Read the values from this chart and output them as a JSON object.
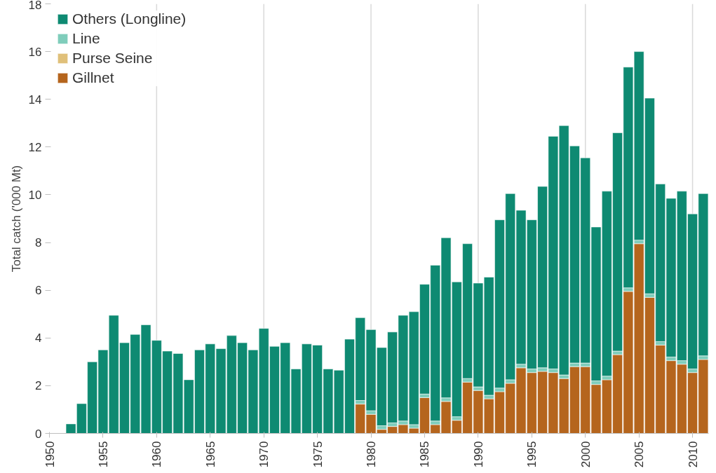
{
  "chart_data": {
    "type": "bar",
    "stacked": true,
    "ylabel": "Total catch ('000 Mt)",
    "x": [
      1952,
      1953,
      1954,
      1955,
      1956,
      1957,
      1958,
      1959,
      1960,
      1961,
      1962,
      1963,
      1964,
      1965,
      1966,
      1967,
      1968,
      1969,
      1970,
      1971,
      1972,
      1973,
      1974,
      1975,
      1976,
      1977,
      1978,
      1979,
      1980,
      1981,
      1982,
      1983,
      1984,
      1985,
      1986,
      1987,
      1988,
      1989,
      1990,
      1991,
      1992,
      1993,
      1994,
      1995,
      1996,
      1997,
      1998,
      1999,
      2000,
      2001,
      2002,
      2003,
      2004,
      2005,
      2006,
      2007,
      2008,
      2009,
      2010,
      2011
    ],
    "series": [
      {
        "name": "Gillnet",
        "color": "#b5651d",
        "values": [
          null,
          null,
          null,
          null,
          null,
          null,
          null,
          null,
          null,
          null,
          null,
          null,
          null,
          null,
          null,
          null,
          null,
          null,
          null,
          null,
          null,
          null,
          null,
          null,
          null,
          null,
          null,
          1.23,
          0.8,
          0.17,
          0.29,
          0.37,
          0.22,
          1.5,
          0.37,
          1.34,
          0.55,
          2.15,
          1.8,
          1.45,
          1.75,
          2.1,
          2.75,
          2.55,
          2.6,
          2.55,
          2.3,
          2.8,
          2.8,
          2.05,
          2.25,
          3.3,
          5.95,
          7.95,
          5.7,
          3.7,
          3.05,
          2.9,
          2.55,
          3.1
        ]
      },
      {
        "name": "Purse Seine",
        "color": "#e0c07a",
        "values": [
          null,
          null,
          null,
          null,
          null,
          null,
          null,
          null,
          null,
          null,
          null,
          null,
          null,
          null,
          null,
          null,
          null,
          null,
          null,
          null,
          null,
          null,
          null,
          null,
          null,
          null,
          null,
          null,
          null,
          null,
          null,
          null,
          null,
          null,
          null,
          null,
          null,
          null,
          null,
          null,
          null,
          null,
          null,
          null,
          null,
          null,
          null,
          null,
          null,
          null,
          null,
          null,
          null,
          null,
          null,
          null,
          null,
          null,
          null,
          null
        ]
      },
      {
        "name": "Line",
        "color": "#7fcdbb",
        "values": [
          null,
          null,
          null,
          null,
          null,
          null,
          null,
          null,
          null,
          null,
          null,
          null,
          null,
          null,
          null,
          null,
          null,
          null,
          null,
          null,
          null,
          null,
          null,
          null,
          null,
          null,
          null,
          0.15,
          0.15,
          0.15,
          0.15,
          0.15,
          0.15,
          0.15,
          0.15,
          0.15,
          0.15,
          0.15,
          0.15,
          0.15,
          0.15,
          0.15,
          0.15,
          0.15,
          0.15,
          0.15,
          0.15,
          0.15,
          0.15,
          0.15,
          0.15,
          0.15,
          0.15,
          0.15,
          0.15,
          0.15,
          0.15,
          0.15,
          0.15,
          0.15
        ]
      },
      {
        "name": "Others (Longline)",
        "color": "#0e8a72",
        "values": [
          0.4,
          1.25,
          3.0,
          3.5,
          4.95,
          3.8,
          4.15,
          4.55,
          3.9,
          3.45,
          3.35,
          2.25,
          3.5,
          3.75,
          3.55,
          4.1,
          3.8,
          3.5,
          4.4,
          3.65,
          3.8,
          2.7,
          3.75,
          3.7,
          2.7,
          2.65,
          3.95,
          3.47,
          3.4,
          3.28,
          3.81,
          4.43,
          4.73,
          4.6,
          6.53,
          6.71,
          5.65,
          5.65,
          4.35,
          4.95,
          7.05,
          7.8,
          6.45,
          6.25,
          7.6,
          9.75,
          10.45,
          9.1,
          8.6,
          6.45,
          7.75,
          9.15,
          9.25,
          7.9,
          8.2,
          6.6,
          6.65,
          7.1,
          6.5,
          6.8
        ]
      }
    ],
    "xlim": [
      1950,
      2011.5
    ],
    "xticks": [
      1950,
      1955,
      1960,
      1965,
      1970,
      1975,
      1980,
      1985,
      1990,
      1995,
      2000,
      2005,
      2010
    ],
    "ylim": [
      0,
      18
    ],
    "yticks": [
      0,
      2,
      4,
      6,
      8,
      10,
      12,
      14,
      16,
      18
    ],
    "ref_lines": [
      {
        "axis": "x",
        "value": 1960,
        "color": "#d9d9d9"
      },
      {
        "axis": "x",
        "value": 1970,
        "color": "#d9d9d9"
      },
      {
        "axis": "x",
        "value": 1980,
        "color": "#d9d9d9"
      },
      {
        "axis": "x",
        "value": 1990,
        "color": "#d9d9d9"
      },
      {
        "axis": "x",
        "value": 2000,
        "color": "#d9d9d9"
      },
      {
        "axis": "x",
        "value": 2010,
        "color": "#d9d9d9"
      }
    ],
    "grid": false,
    "legend": "top left"
  }
}
